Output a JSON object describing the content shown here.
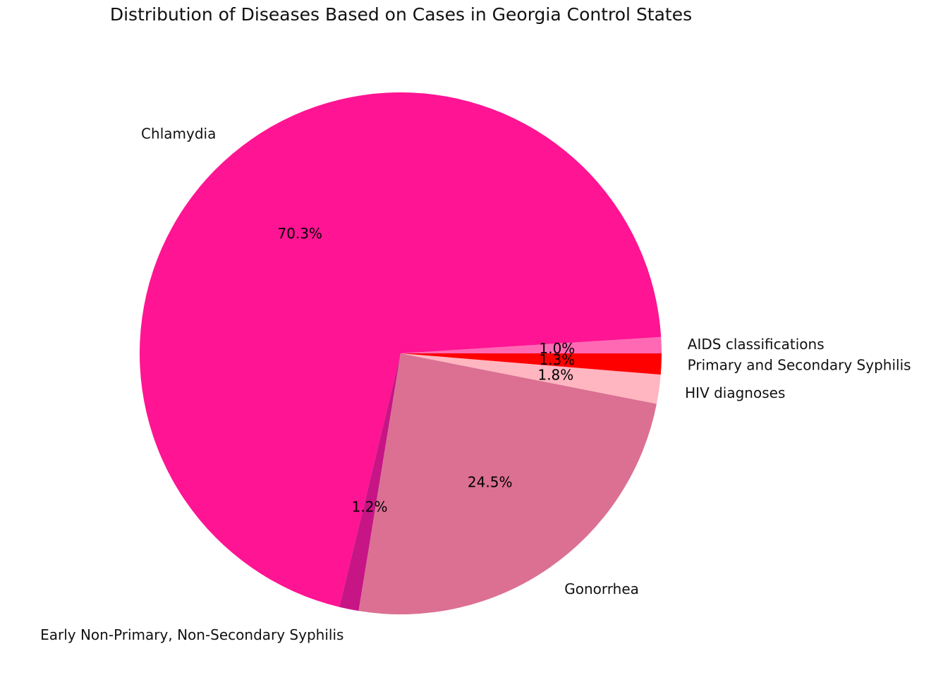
{
  "chart_data": {
    "type": "pie",
    "title": "Distribution of Diseases Based on Cases in Georgia Control States",
    "start_angle_deg": 0,
    "direction": "counterclockwise",
    "slices": [
      {
        "label": "AIDS classifications",
        "pct_text": "1.0%",
        "value": 1.0,
        "color": "#ff69b4"
      },
      {
        "label": "Chlamydia",
        "pct_text": "70.3%",
        "value": 70.3,
        "color": "#ff1493"
      },
      {
        "label": "Early Non-Primary, Non-Secondary Syphilis",
        "pct_text": "1.2%",
        "value": 1.2,
        "color": "#c71585"
      },
      {
        "label": "Gonorrhea",
        "pct_text": "24.5%",
        "value": 24.5,
        "color": "#db7093"
      },
      {
        "label": "HIV diagnoses",
        "pct_text": "1.8%",
        "value": 1.8,
        "color": "#ffb6c1"
      },
      {
        "label": "Primary and Secondary Syphilis",
        "pct_text": "1.3%",
        "value": 1.3,
        "color": "#ff0000"
      }
    ]
  }
}
